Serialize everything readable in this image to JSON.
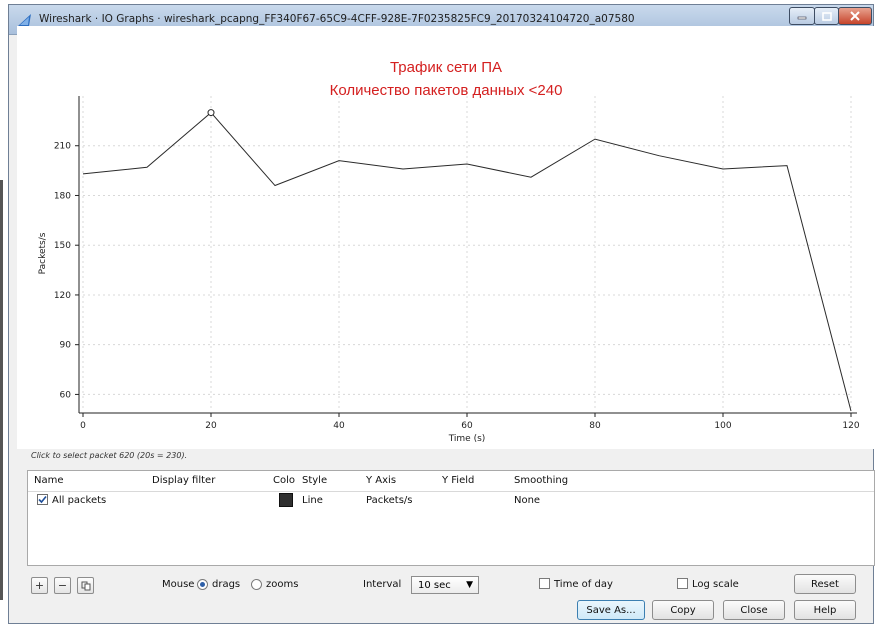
{
  "window": {
    "title": "Wireshark · IO Graphs · wireshark_pcapng_FF340F67-65C9-4CFF-928E-7F0235825FC9_20170324104720_a07580"
  },
  "colors": {
    "title_red": "#d42020",
    "line": "#2a2a2a",
    "grid": "#d8d8d8"
  },
  "chart_data": {
    "type": "line",
    "title": "Трафик сети ПА",
    "subtitle": "Количество пакетов данных <240",
    "xlabel": "Time (s)",
    "ylabel": "Packets/s",
    "xlim": [
      0,
      120
    ],
    "ylim": [
      50,
      240
    ],
    "x_ticks": [
      0,
      20,
      40,
      60,
      80,
      100,
      120
    ],
    "y_ticks": [
      60,
      90,
      120,
      150,
      180,
      210
    ],
    "grid": true,
    "series": [
      {
        "name": "All packets",
        "x": [
          0,
          10,
          20,
          30,
          40,
          50,
          60,
          70,
          80,
          90,
          100,
          110,
          120
        ],
        "y": [
          193,
          197,
          230,
          186,
          201,
          196,
          199,
          191,
          214,
          204,
          196,
          198,
          50
        ]
      }
    ],
    "marked_point": {
      "x": 20,
      "y": 230
    }
  },
  "status_hint": "Click to select packet 620 (20s = 230).",
  "table": {
    "headers": [
      "Name",
      "Display filter",
      "Colo",
      "Style",
      "Y Axis",
      "Y Field",
      "Smoothing"
    ],
    "rows": [
      {
        "enabled": true,
        "name": "All packets",
        "display_filter": "",
        "style": "Line",
        "y_axis": "Packets/s",
        "y_field": "",
        "smoothing": "None",
        "color": "#2f2f2f"
      }
    ]
  },
  "controls": {
    "mouse_label": "Mouse",
    "drags_label": "drags",
    "zooms_label": "zooms",
    "mouse_mode": "drags",
    "interval_label": "Interval",
    "interval_value": "10 sec",
    "time_of_day_label": "Time of day",
    "log_scale_label": "Log scale",
    "reset_label": "Reset",
    "save_as_label": "Save As...",
    "copy_label": "Copy",
    "close_label": "Close",
    "help_label": "Help"
  }
}
